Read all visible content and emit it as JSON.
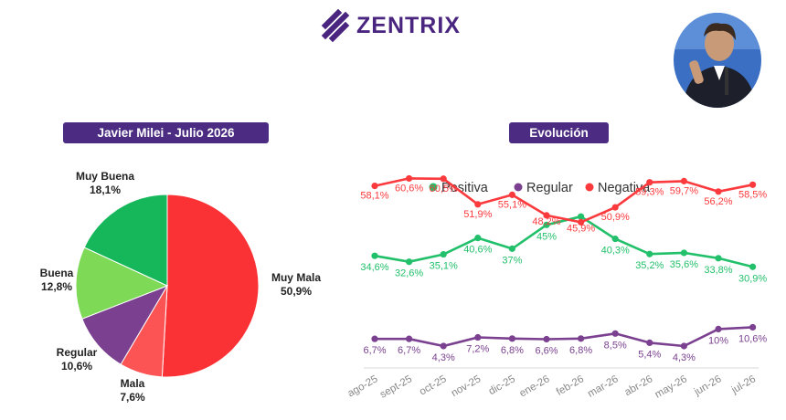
{
  "brand": {
    "name": "ZENTRIX",
    "primary_color": "#4a2580"
  },
  "pie_section": {
    "title": "Javier Milei - Julio 2026"
  },
  "line_section": {
    "title": "Evolución"
  },
  "photo": {
    "icon": "person-photo-icon"
  },
  "chart_data": [
    {
      "type": "pie",
      "title": "Javier Milei - Julio 2026",
      "slices": [
        {
          "label": "Muy Mala",
          "value": 50.9,
          "display": "50,9%",
          "color": "#fb3235"
        },
        {
          "label": "Mala",
          "value": 7.6,
          "display": "7,6%",
          "color": "#fc5354"
        },
        {
          "label": "Regular",
          "value": 10.6,
          "display": "10,6%",
          "color": "#7b4190"
        },
        {
          "label": "Buena",
          "value": 12.8,
          "display": "12,8%",
          "color": "#7ed957"
        },
        {
          "label": "Muy Buena",
          "value": 18.1,
          "display": "18,1%",
          "color": "#16b75a"
        }
      ]
    },
    {
      "type": "line",
      "title": "Evolución",
      "categories": [
        "ago-25",
        "sept-25",
        "oct-25",
        "nov-25",
        "dic-25",
        "ene-26",
        "feb-26",
        "mar-26",
        "abr-26",
        "may-26",
        "jun-26",
        "jul-26"
      ],
      "legend_position": "top",
      "grid": false,
      "ylim": [
        0,
        70
      ],
      "series": [
        {
          "name": "Positiva",
          "color": "#22c06a",
          "values": [
            34.6,
            32.6,
            35.1,
            40.6,
            37,
            45,
            47.8,
            40.3,
            35.2,
            35.6,
            33.8,
            30.9
          ],
          "labels": [
            "34,6%",
            "32,6%",
            "35,1%",
            "40,6%",
            "37%",
            "45%",
            "",
            "40,3%",
            "35,2%",
            "35,6%",
            "33,8%",
            "30,9%"
          ]
        },
        {
          "name": "Regular",
          "color": "#7b4190",
          "values": [
            6.7,
            6.7,
            4.3,
            7.2,
            6.8,
            6.6,
            6.8,
            8.5,
            5.4,
            4.3,
            10,
            10.6
          ],
          "labels": [
            "6,7%",
            "6,7%",
            "4,3%",
            "7,2%",
            "6,8%",
            "6,6%",
            "6,8%",
            "8,5%",
            "5,4%",
            "4,3%",
            "10%",
            "10,6%"
          ]
        },
        {
          "name": "Negativa",
          "color": "#fb3a3d",
          "values": [
            58.1,
            60.6,
            60.5,
            51.9,
            55.1,
            48.2,
            45.9,
            50.9,
            59.3,
            59.7,
            56.2,
            58.5
          ],
          "labels": [
            "58,1%",
            "60,6%",
            "60,5%",
            "51,9%",
            "55,1%",
            "48,2%",
            "45,9%",
            "50,9%",
            "59,3%",
            "59,7%",
            "56,2%",
            "58,5%"
          ]
        }
      ]
    }
  ]
}
